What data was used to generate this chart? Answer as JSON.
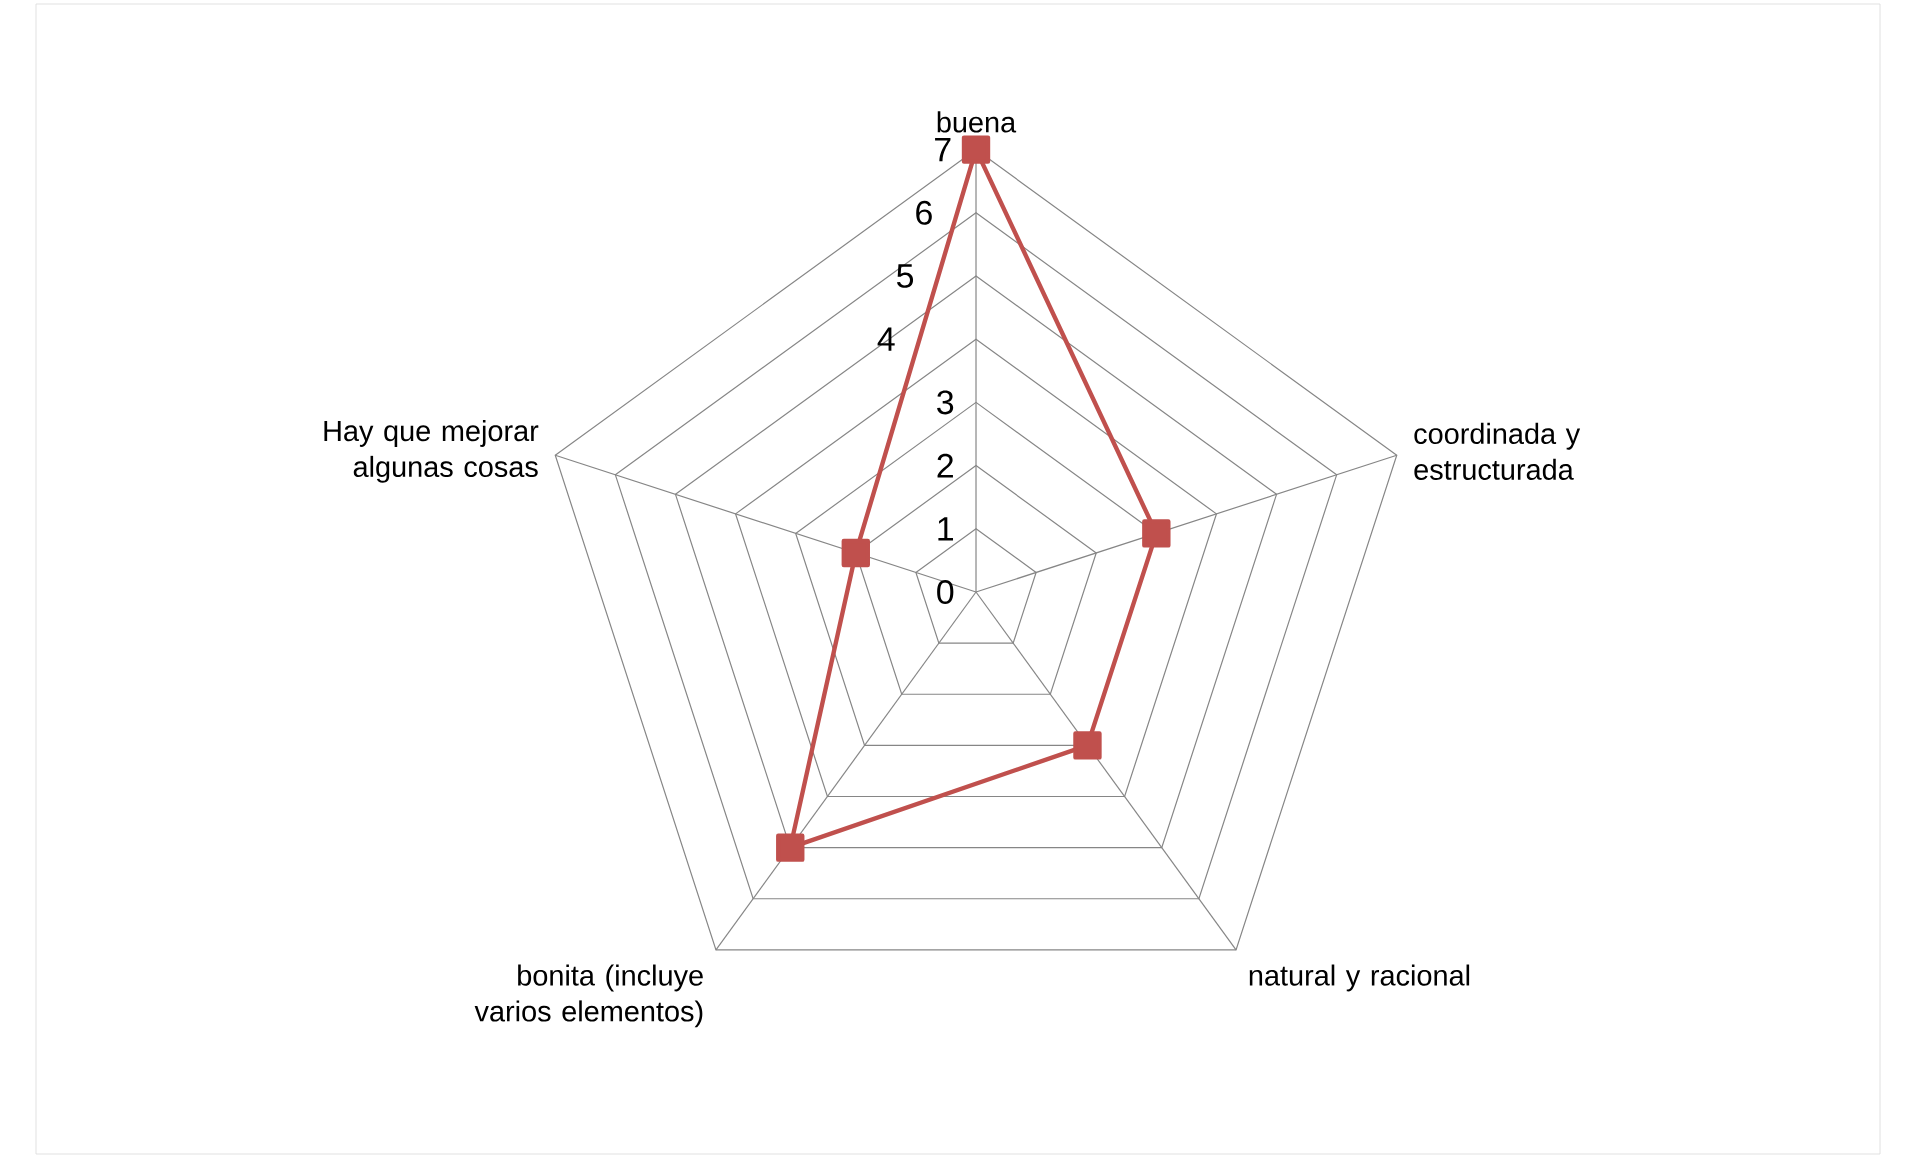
{
  "chart_data": {
    "type": "radar",
    "categories": [
      "buena",
      "coordinada y estructurada",
      "natural y racional",
      "bonita (incluye varios elementos)",
      "Hay que mejorar algunas cosas"
    ],
    "series": [
      {
        "color": "#c0504d",
        "values": [
          7,
          3,
          3,
          5,
          2
        ]
      }
    ],
    "ylim": [
      0,
      7
    ],
    "yticks": [
      0,
      1,
      2,
      3,
      4,
      5,
      6,
      7
    ],
    "grid": true,
    "marker": "square"
  }
}
